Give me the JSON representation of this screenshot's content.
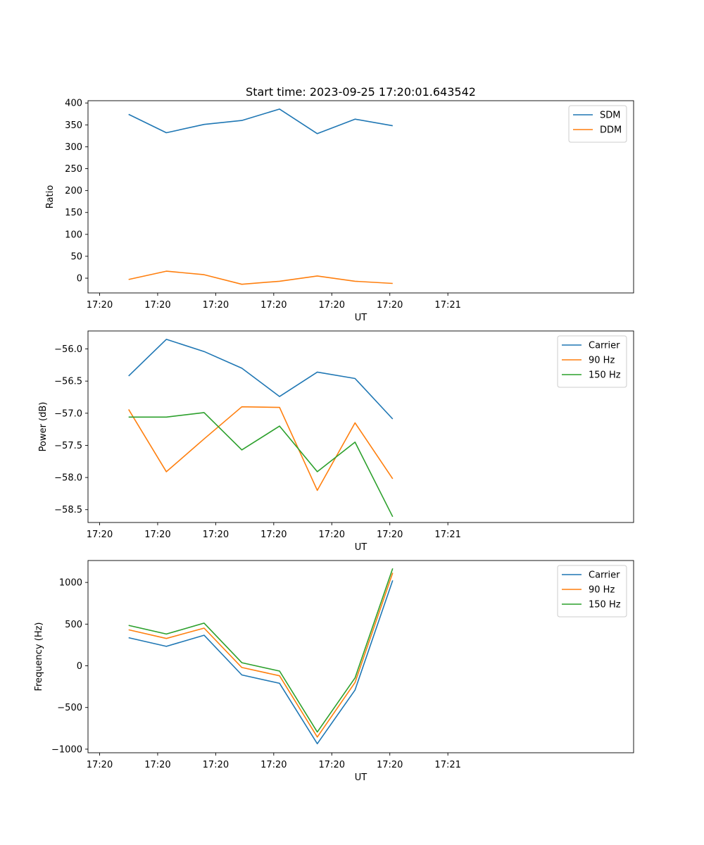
{
  "chart_data": [
    {
      "type": "line",
      "title": "Start time: 2023-09-25 17:20:01.643542",
      "xlabel": "UT",
      "ylabel": "Ratio",
      "xlim": [
        -0.2,
        9.2
      ],
      "ylim": [
        -33.7,
        405.2
      ],
      "xticks": [
        0,
        1,
        2,
        3,
        4,
        5,
        6
      ],
      "xtick_labels": [
        "17:20",
        "17:20",
        "17:20",
        "17:20",
        "17:20",
        "17:20",
        "17:21"
      ],
      "yticks": [
        0,
        50,
        100,
        150,
        200,
        250,
        300,
        350,
        400
      ],
      "ytick_labels": [
        "0",
        "50",
        "100",
        "150",
        "200",
        "250",
        "300",
        "350",
        "400"
      ],
      "legend_position": "top-right",
      "grid": false,
      "x": [
        0.5,
        1.15,
        1.8,
        2.45,
        3.1,
        3.75,
        4.4,
        5.05
      ],
      "series": [
        {
          "name": "SDM",
          "color": "#1f77b4",
          "values": [
            374,
            332,
            351,
            360,
            386,
            330,
            363,
            348
          ]
        },
        {
          "name": "DDM",
          "color": "#ff7f0e",
          "values": [
            -3,
            16,
            8,
            -14,
            -7,
            5,
            -7,
            -12
          ]
        }
      ]
    },
    {
      "type": "line",
      "title": "",
      "xlabel": "UT",
      "ylabel": "Power (dB)",
      "xlim": [
        -0.2,
        9.2
      ],
      "ylim": [
        -58.7,
        -55.72
      ],
      "xticks": [
        0,
        1,
        2,
        3,
        4,
        5,
        6
      ],
      "xtick_labels": [
        "17:20",
        "17:20",
        "17:20",
        "17:20",
        "17:20",
        "17:20",
        "17:21"
      ],
      "yticks": [
        -58.5,
        -58.0,
        -57.5,
        -57.0,
        -56.5,
        -56.0
      ],
      "ytick_labels": [
        "−58.5",
        "−58.0",
        "−57.5",
        "−57.0",
        "−56.5",
        "−56.0"
      ],
      "legend_position": "top-right",
      "grid": false,
      "x": [
        0.5,
        1.15,
        1.8,
        2.45,
        3.1,
        3.75,
        4.4,
        5.05
      ],
      "series": [
        {
          "name": "Carrier",
          "color": "#1f77b4",
          "values": [
            -56.42,
            -55.85,
            -56.04,
            -56.3,
            -56.74,
            -56.36,
            -56.46,
            -57.09
          ]
        },
        {
          "name": "90 Hz",
          "color": "#ff7f0e",
          "values": [
            -56.94,
            -57.91,
            -57.4,
            -56.9,
            -56.91,
            -58.2,
            -57.15,
            -58.02
          ]
        },
        {
          "name": "150 Hz",
          "color": "#2ca02c",
          "values": [
            -57.06,
            -57.06,
            -56.99,
            -57.57,
            -57.2,
            -57.91,
            -57.45,
            -58.61
          ]
        }
      ]
    },
    {
      "type": "line",
      "title": "",
      "xlabel": "UT",
      "ylabel": "Frequency (Hz)",
      "xlim": [
        -0.2,
        9.2
      ],
      "ylim": [
        -1043,
        1263
      ],
      "xticks": [
        0,
        1,
        2,
        3,
        4,
        5,
        6
      ],
      "xtick_labels": [
        "17:20",
        "17:20",
        "17:20",
        "17:20",
        "17:20",
        "17:20",
        "17:21"
      ],
      "yticks": [
        -1000,
        -500,
        0,
        500,
        1000
      ],
      "ytick_labels": [
        "−1000",
        "−500",
        "0",
        "500",
        "1000"
      ],
      "legend_position": "top-right",
      "grid": false,
      "x": [
        0.5,
        1.15,
        1.8,
        2.45,
        3.1,
        3.75,
        4.4,
        5.05
      ],
      "series": [
        {
          "name": "Carrier",
          "color": "#1f77b4",
          "values": [
            337,
            233,
            367,
            -110,
            -210,
            -935,
            -290,
            1025
          ]
        },
        {
          "name": "90 Hz",
          "color": "#ff7f0e",
          "values": [
            432,
            328,
            452,
            -20,
            -120,
            -855,
            -200,
            1115
          ]
        },
        {
          "name": "150 Hz",
          "color": "#2ca02c",
          "values": [
            485,
            381,
            512,
            37,
            -63,
            -795,
            -145,
            1168
          ]
        }
      ]
    }
  ]
}
